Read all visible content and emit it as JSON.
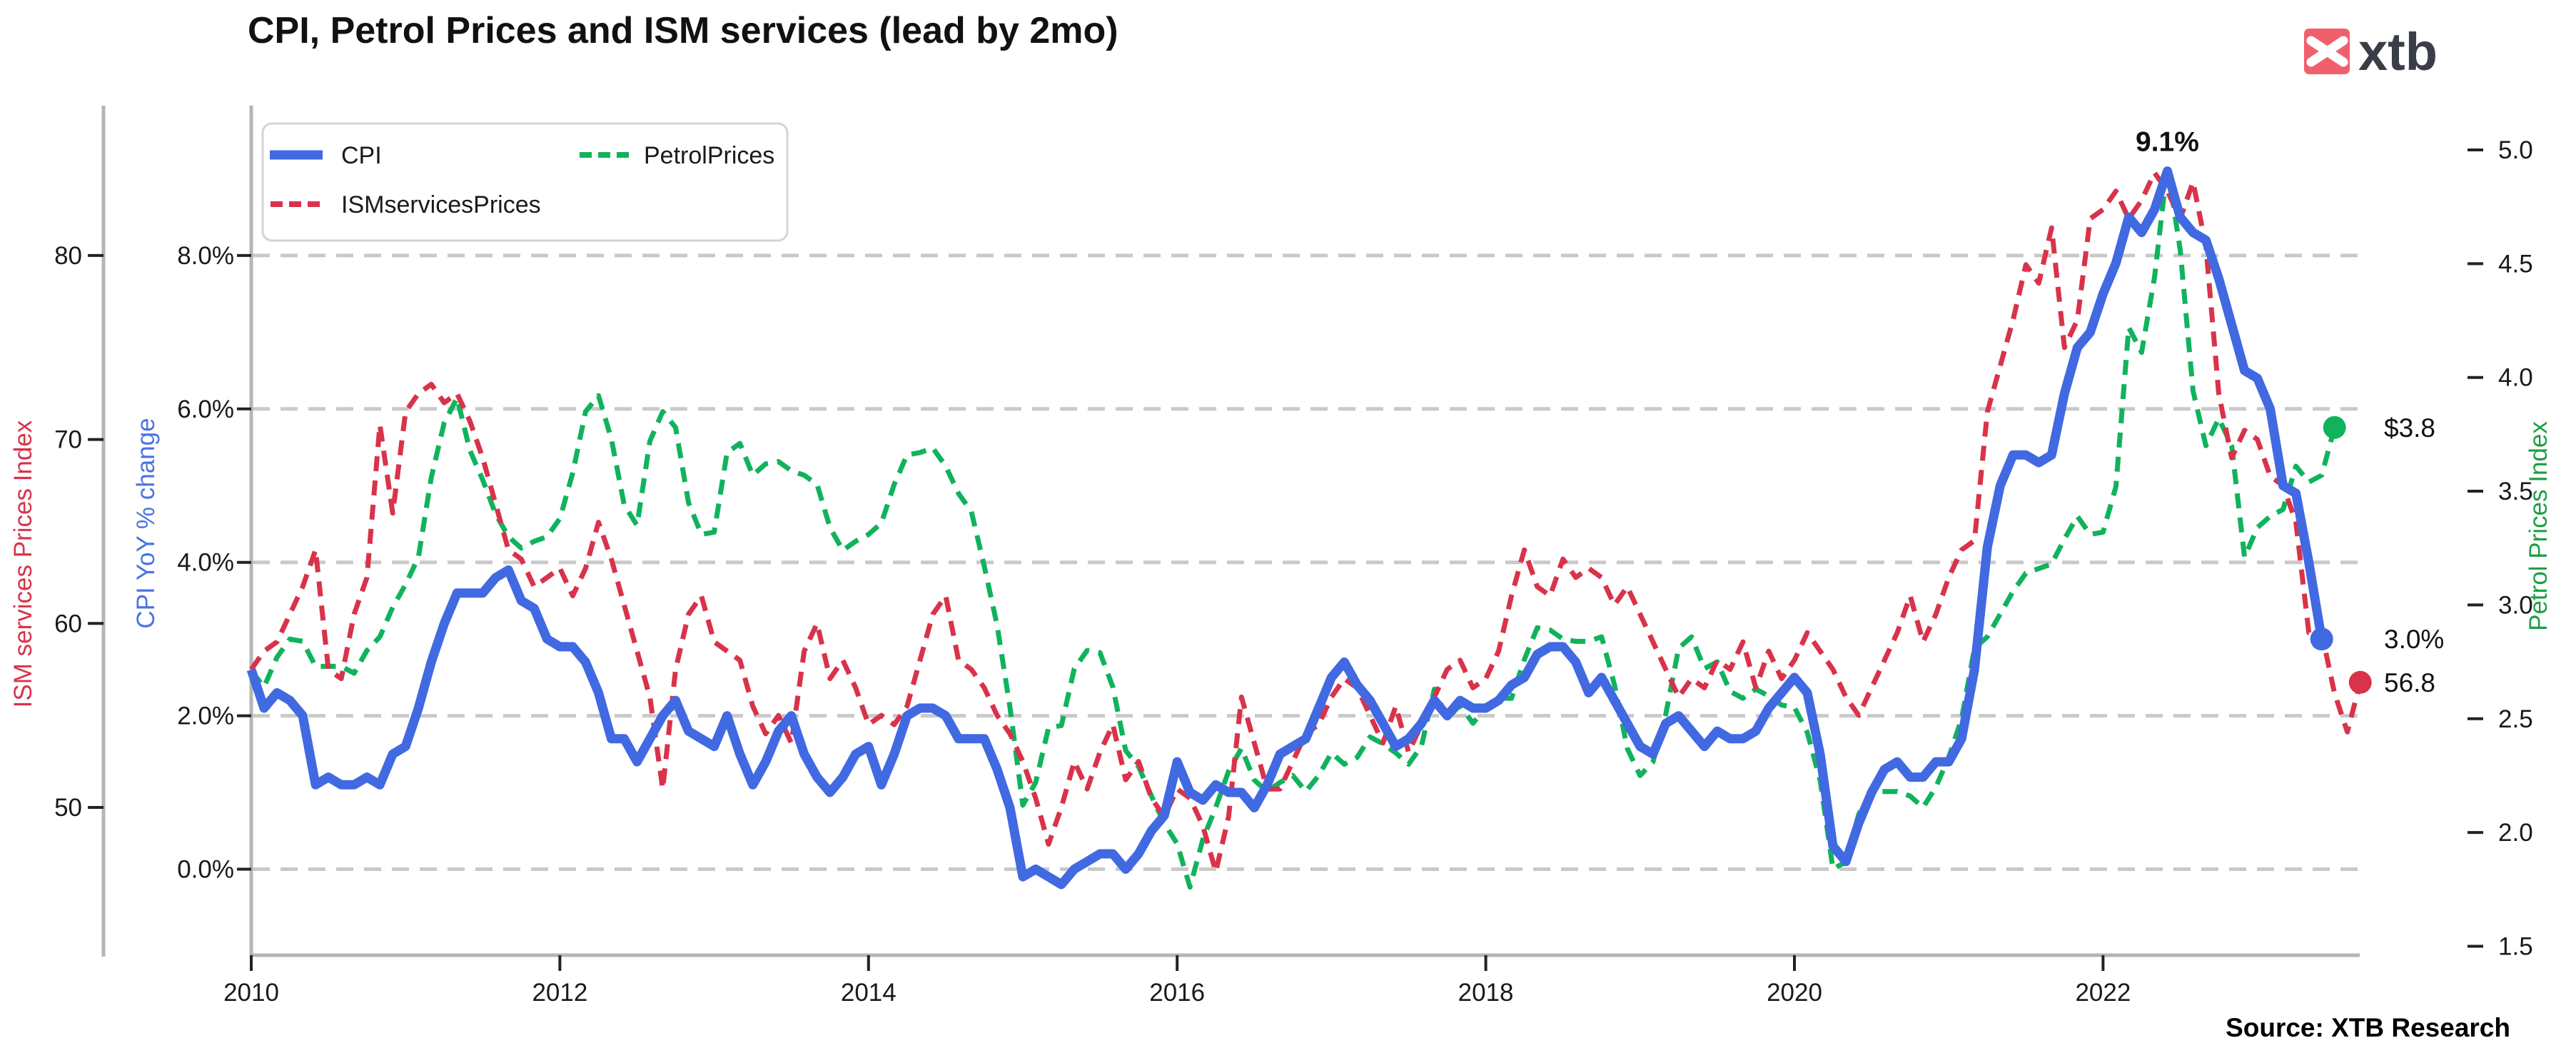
{
  "title": "CPI, Petrol Prices and ISM services (lead by 2mo)",
  "source_note": "Source: XTB Research",
  "logo": {
    "text": "xtb",
    "icon": "x-arrows-icon",
    "bg_color": "#f15f6d",
    "text_color": "#3a3e47"
  },
  "colors": {
    "cpi_line": "#4169e1",
    "ism_line": "#d8334a",
    "petrol_line": "#10b35c",
    "cpi_label": "#4a73e3",
    "ism_label": "#d8334a",
    "petrol_label": "#1d9e45",
    "grid": "#c9c9c9",
    "spine": "#b5b5b5",
    "tick": "#222222"
  },
  "legend": {
    "items": [
      {
        "label": "CPI",
        "color": "#4169e1",
        "dash": false
      },
      {
        "label": "ISMservicesPrices",
        "color": "#d8334a",
        "dash": true
      },
      {
        "label": "PetrolPrices",
        "color": "#10b35c",
        "dash": true
      }
    ],
    "position": "upper-left"
  },
  "axes": {
    "ism": {
      "label": "ISM services Prices Index",
      "ticks": [
        50,
        60,
        70,
        80
      ],
      "range_visible": [
        42.0,
        88.1
      ]
    },
    "cpi": {
      "label": "CPI YoY % change",
      "ticks": [
        "0.0%",
        "2.0%",
        "4.0%",
        "6.0%",
        "8.0%"
      ],
      "tick_values": [
        0,
        2,
        4,
        6,
        8
      ],
      "range_visible": [
        -1.1,
        9.9
      ]
    },
    "petrol": {
      "label": "Petrol Prices Index",
      "ticks": [
        "1.5",
        "2.0",
        "2.5",
        "3.0",
        "3.5",
        "4.0",
        "4.5",
        "5.0"
      ],
      "tick_values": [
        1.5,
        2.0,
        2.5,
        3.0,
        3.5,
        4.0,
        4.5,
        5.0
      ],
      "range_visible": [
        1.46,
        5.19
      ]
    },
    "x": {
      "ticks": [
        "2010",
        "2012",
        "2014",
        "2016",
        "2018",
        "2020",
        "2022"
      ],
      "tick_values": [
        2010,
        2012,
        2014,
        2016,
        2018,
        2020,
        2022
      ]
    }
  },
  "annotations": {
    "cpi_peak": "9.1%",
    "cpi_end": "3.0%",
    "petrol_end": "$3.8",
    "ism_end": "56.8"
  },
  "chart_data": {
    "type": "line",
    "grid": "horizontal-dashed",
    "x_start_year": 2010.0,
    "x_step_months": 1,
    "series": [
      {
        "name": "PetrolPrices",
        "axis": "petrol",
        "style": "dashed",
        "color": "#10b35c",
        "end_dot": true,
        "end_label": "$3.8",
        "values": [
          2.71,
          2.64,
          2.77,
          2.85,
          2.84,
          2.73,
          2.73,
          2.73,
          2.7,
          2.8,
          2.86,
          2.99,
          3.09,
          3.21,
          3.56,
          3.8,
          3.91,
          3.68,
          3.55,
          3.4,
          3.3,
          3.25,
          3.28,
          3.3,
          3.38,
          3.58,
          3.85,
          3.92,
          3.73,
          3.44,
          3.35,
          3.72,
          3.85,
          3.78,
          3.45,
          3.31,
          3.32,
          3.67,
          3.71,
          3.57,
          3.62,
          3.63,
          3.59,
          3.57,
          3.53,
          3.34,
          3.24,
          3.28,
          3.31,
          3.36,
          3.53,
          3.66,
          3.67,
          3.69,
          3.61,
          3.49,
          3.41,
          3.17,
          2.91,
          2.55,
          2.12,
          2.22,
          2.46,
          2.47,
          2.72,
          2.8,
          2.79,
          2.64,
          2.36,
          2.29,
          2.16,
          2.04,
          1.95,
          1.76,
          1.97,
          2.11,
          2.27,
          2.37,
          2.23,
          2.18,
          2.22,
          2.25,
          2.18,
          2.25,
          2.35,
          2.3,
          2.33,
          2.42,
          2.39,
          2.35,
          2.3,
          2.38,
          2.63,
          2.5,
          2.56,
          2.48,
          2.55,
          2.59,
          2.59,
          2.76,
          2.9,
          2.89,
          2.85,
          2.84,
          2.84,
          2.86,
          2.65,
          2.37,
          2.25,
          2.31,
          2.52,
          2.81,
          2.86,
          2.72,
          2.75,
          2.62,
          2.59,
          2.63,
          2.6,
          2.56,
          2.55,
          2.44,
          2.23,
          1.84,
          1.87,
          2.08,
          2.18,
          2.18,
          2.18,
          2.16,
          2.11,
          2.2,
          2.33,
          2.5,
          2.81,
          2.86,
          2.96,
          3.06,
          3.14,
          3.16,
          3.18,
          3.29,
          3.39,
          3.31,
          3.32,
          3.52,
          4.22,
          4.11,
          4.44,
          4.93,
          4.56,
          3.94,
          3.7,
          3.82,
          3.7,
          3.21,
          3.34,
          3.39,
          3.42,
          3.61,
          3.54,
          3.57,
          3.78
        ]
      },
      {
        "name": "ISMservicesPrices",
        "axis": "ism",
        "style": "dashed",
        "color": "#d8334a",
        "end_dot": true,
        "end_label": "56.8",
        "lead_months": 2,
        "data_start": "2009-11",
        "values": [
          57.5,
          58.5,
          59.0,
          60.5,
          62.0,
          64.0,
          57.5,
          57.0,
          60.5,
          62.5,
          70.8,
          66.0,
          71.5,
          72.5,
          73.0,
          72.0,
          72.5,
          71.0,
          69.0,
          66.5,
          64.0,
          63.5,
          62.0,
          62.5,
          63.0,
          61.5,
          63.0,
          65.5,
          63.5,
          61.0,
          58.5,
          56.0,
          51.0,
          57.5,
          60.5,
          61.5,
          59.0,
          58.5,
          58.0,
          55.5,
          54.0,
          55.0,
          53.5,
          58.5,
          60.0,
          57.0,
          58.0,
          56.5,
          54.5,
          55.0,
          54.5,
          55.5,
          58.0,
          60.5,
          61.5,
          58.0,
          57.5,
          56.5,
          55.0,
          54.0,
          52.5,
          50.5,
          48.0,
          50.0,
          52.5,
          51.0,
          53.0,
          54.5,
          51.5,
          52.5,
          50.5,
          49.5,
          51.0,
          50.5,
          49.0,
          46.5,
          49.5,
          56.0,
          53.5,
          51.0,
          51.0,
          52.5,
          54.0,
          54.5,
          56.0,
          57.0,
          56.5,
          55.0,
          53.5,
          55.5,
          53.0,
          54.5,
          56.0,
          57.5,
          58.0,
          56.5,
          57.0,
          58.5,
          61.5,
          64.0,
          62.0,
          61.5,
          63.5,
          62.5,
          63.0,
          62.5,
          61.0,
          62.0,
          60.5,
          59.0,
          57.5,
          56.0,
          57.0,
          56.5,
          58.0,
          57.5,
          59.0,
          56.5,
          58.5,
          57.0,
          58.0,
          59.5,
          58.5,
          57.5,
          56.0,
          55.0,
          56.5,
          58.0,
          59.5,
          61.5,
          59.0,
          60.5,
          62.5,
          64.0,
          64.5,
          71.5,
          74.0,
          76.5,
          79.5,
          78.5,
          81.5,
          75.0,
          76.5,
          82.0,
          82.5,
          83.5,
          82.0,
          83.0,
          84.5,
          83.5,
          82.0,
          84.0,
          80.5,
          72.5,
          69.0,
          70.5,
          70.0,
          68.0,
          67.5,
          65.5,
          59.5,
          59.5,
          56.2,
          54.1,
          56.8
        ]
      },
      {
        "name": "CPI",
        "axis": "cpi",
        "style": "solid",
        "color": "#4169e1",
        "end_dot": true,
        "end_label": "3.0%",
        "peak_label": "9.1%",
        "values": [
          2.6,
          2.1,
          2.3,
          2.2,
          2.0,
          1.1,
          1.2,
          1.1,
          1.1,
          1.2,
          1.1,
          1.5,
          1.6,
          2.1,
          2.7,
          3.2,
          3.6,
          3.6,
          3.6,
          3.8,
          3.9,
          3.5,
          3.4,
          3.0,
          2.9,
          2.9,
          2.7,
          2.3,
          1.7,
          1.7,
          1.4,
          1.7,
          2.0,
          2.2,
          1.8,
          1.7,
          1.6,
          2.0,
          1.5,
          1.1,
          1.4,
          1.8,
          2.0,
          1.5,
          1.2,
          1.0,
          1.2,
          1.5,
          1.6,
          1.1,
          1.5,
          2.0,
          2.1,
          2.1,
          2.0,
          1.7,
          1.7,
          1.7,
          1.3,
          0.8,
          -0.1,
          0.0,
          -0.1,
          -0.2,
          0.0,
          0.1,
          0.2,
          0.2,
          0.0,
          0.2,
          0.5,
          0.7,
          1.4,
          1.0,
          0.9,
          1.1,
          1.0,
          1.0,
          0.8,
          1.1,
          1.5,
          1.6,
          1.7,
          2.1,
          2.5,
          2.7,
          2.4,
          2.2,
          1.9,
          1.6,
          1.7,
          1.9,
          2.2,
          2.0,
          2.2,
          2.1,
          2.1,
          2.2,
          2.4,
          2.5,
          2.8,
          2.9,
          2.9,
          2.7,
          2.3,
          2.5,
          2.2,
          1.9,
          1.6,
          1.5,
          1.9,
          2.0,
          1.8,
          1.6,
          1.8,
          1.7,
          1.7,
          1.8,
          2.1,
          2.3,
          2.5,
          2.3,
          1.5,
          0.3,
          0.1,
          0.6,
          1.0,
          1.3,
          1.4,
          1.2,
          1.2,
          1.4,
          1.4,
          1.7,
          2.6,
          4.2,
          5.0,
          5.4,
          5.4,
          5.3,
          5.4,
          6.2,
          6.8,
          7.0,
          7.5,
          7.9,
          8.5,
          8.3,
          8.6,
          9.1,
          8.5,
          8.3,
          8.2,
          7.7,
          7.1,
          6.5,
          6.4,
          6.0,
          5.0,
          4.9,
          4.0,
          3.0
        ]
      }
    ]
  }
}
